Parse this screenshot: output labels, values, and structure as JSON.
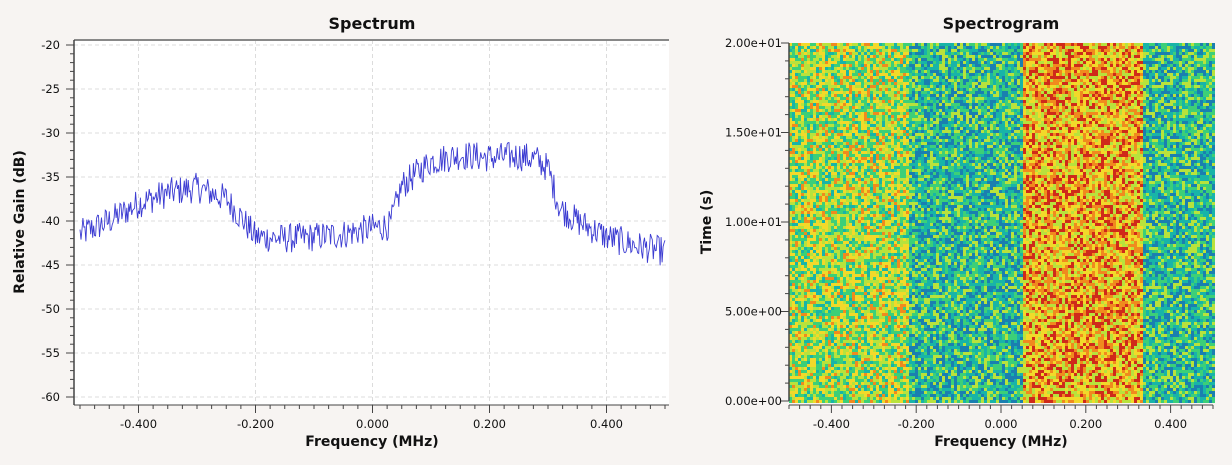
{
  "chart_data": [
    {
      "type": "line",
      "title": "Spectrum",
      "xlabel": "Frequency (MHz)",
      "ylabel": "Relative Gain (dB)",
      "xlim": [
        -0.5,
        0.5
      ],
      "ylim": [
        -60,
        -20
      ],
      "xticks": [
        -0.4,
        -0.2,
        0.0,
        0.2,
        0.4
      ],
      "xtick_labels": [
        "-0.400",
        "-0.200",
        "0.000",
        "0.200",
        "0.400"
      ],
      "yticks": [
        -20,
        -25,
        -30,
        -35,
        -40,
        -45,
        -50,
        -55,
        -60
      ],
      "ytick_labels": [
        "-20",
        "-25",
        "-30",
        "-35",
        "-40",
        "-45",
        "-50",
        "-55",
        "-60"
      ],
      "grid": true,
      "line_color": "#3c3cd2",
      "series": [
        {
          "x": [
            -0.5,
            -0.45,
            -0.4,
            -0.35,
            -0.3,
            -0.25,
            -0.22,
            -0.2,
            -0.15,
            -0.1,
            -0.05,
            0.0,
            0.03,
            0.05,
            0.1,
            0.15,
            0.2,
            0.25,
            0.28,
            0.3,
            0.32,
            0.35,
            0.4,
            0.45,
            0.5
          ],
          "values": [
            -41.5,
            -40.0,
            -38.0,
            -36.8,
            -36.2,
            -37.5,
            -40.0,
            -41.8,
            -42.0,
            -41.8,
            -41.5,
            -40.8,
            -40.5,
            -36.0,
            -33.2,
            -32.5,
            -32.8,
            -32.6,
            -33.0,
            -34.0,
            -38.5,
            -40.0,
            -41.8,
            -42.8,
            -43.5
          ]
        }
      ]
    },
    {
      "type": "heatmap",
      "title": "Spectrogram",
      "xlabel": "Frequency (MHz)",
      "ylabel": "Time (s)",
      "xlim": [
        -0.5,
        0.5
      ],
      "ylim": [
        0,
        20
      ],
      "xticks": [
        -0.4,
        -0.2,
        0.0,
        0.2,
        0.4
      ],
      "xtick_labels": [
        "-0.400",
        "-0.200",
        "0.000",
        "0.200",
        "0.400"
      ],
      "yticks": [
        0,
        5,
        10,
        15,
        20
      ],
      "ytick_labels": [
        "0.00e+00",
        "5.00e+00",
        "1.00e+01",
        "1.50e+01",
        "2.00e+01"
      ],
      "colormap": [
        "#1a7fb0",
        "#18b4a8",
        "#3ccf78",
        "#b8e23c",
        "#f2d92a",
        "#f08a1e",
        "#cf2a1a"
      ],
      "bands": [
        {
          "x_range": [
            -0.5,
            -0.22
          ],
          "level": "medium-high"
        },
        {
          "x_range": [
            -0.22,
            0.05
          ],
          "level": "low"
        },
        {
          "x_range": [
            0.05,
            0.33
          ],
          "level": "high"
        },
        {
          "x_range": [
            0.33,
            0.5
          ],
          "level": "low"
        }
      ]
    }
  ]
}
